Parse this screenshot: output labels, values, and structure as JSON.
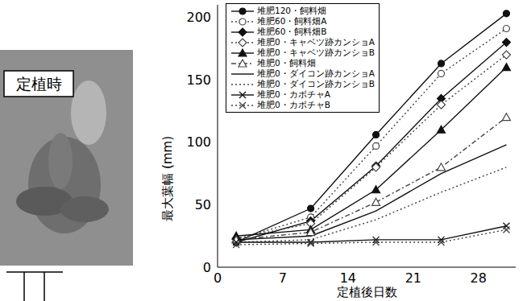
{
  "chart_data": {
    "type": "line",
    "x_label": "定植後日数",
    "y_label": "最大葉幅 (mm)",
    "x": [
      2,
      10,
      17,
      24,
      31
    ],
    "xlim": [
      0,
      32
    ],
    "xticks": [
      0,
      7,
      14,
      21,
      28
    ],
    "ylim": [
      0,
      210
    ],
    "yticks": [
      0,
      50,
      100,
      150,
      200
    ],
    "grid": false,
    "legend": "upper left",
    "series": [
      {
        "name": "堆肥120・飼料畑",
        "color": "#111111",
        "marker": "circle",
        "line_style": "solid",
        "values": [
          20,
          47,
          106,
          163,
          203
        ]
      },
      {
        "name": "堆肥60・飼料畑A",
        "color": "#444444",
        "marker": "open_circle",
        "line_style": "dotted",
        "values": [
          22,
          40,
          97,
          155,
          191
        ]
      },
      {
        "name": "堆肥60・飼料畑B",
        "color": "#111111",
        "marker": "diamond",
        "line_style": "solid",
        "values": [
          20,
          37,
          81,
          135,
          180
        ]
      },
      {
        "name": "堆肥0・キャベツ跡カンショA",
        "color": "#444444",
        "marker": "open_diamond",
        "line_style": "dotted",
        "values": [
          23,
          35,
          80,
          130,
          170
        ]
      },
      {
        "name": "堆肥0・キャベツ跡カンショB",
        "color": "#111111",
        "marker": "triangle",
        "line_style": "solid",
        "values": [
          25,
          30,
          62,
          110,
          160
        ]
      },
      {
        "name": "堆肥0・飼料畑",
        "color": "#444444",
        "marker": "open_triangle",
        "line_style": "dashdot",
        "values": [
          22,
          28,
          52,
          80,
          120
        ]
      },
      {
        "name": "堆肥0・ダイコン跡カンショA",
        "color": "#111111",
        "marker": "none",
        "line_style": "solid",
        "values": [
          22,
          25,
          45,
          75,
          98
        ]
      },
      {
        "name": "堆肥0・ダイコン跡カンショB",
        "color": "#444444",
        "marker": "none",
        "line_style": "dotted",
        "values": [
          20,
          22,
          38,
          60,
          80
        ]
      },
      {
        "name": "堆肥0・カボチャA",
        "color": "#111111",
        "marker": "x",
        "line_style": "solid",
        "values": [
          20,
          20,
          22,
          22,
          33
        ]
      },
      {
        "name": "堆肥0・カボチャB",
        "color": "#444444",
        "marker": "x",
        "line_style": "dotted",
        "values": [
          18,
          19,
          20,
          20,
          30
        ]
      }
    ]
  },
  "photo": {
    "label": "定植時"
  }
}
